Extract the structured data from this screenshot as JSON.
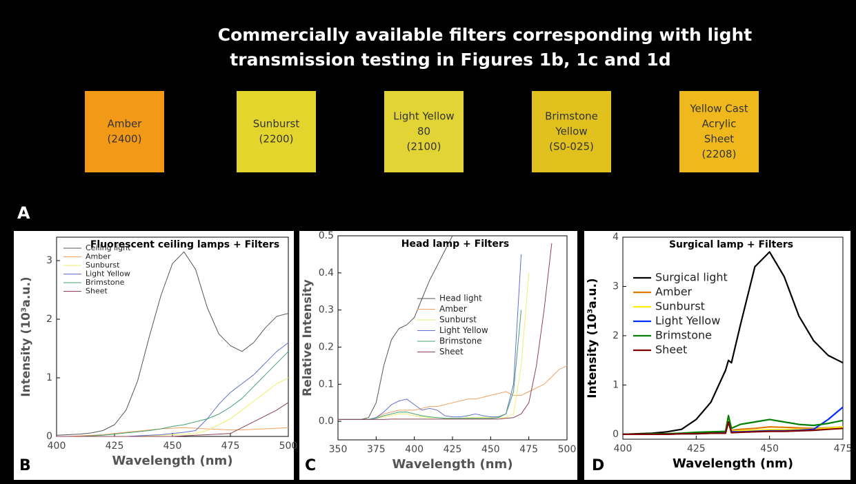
{
  "photo": {
    "title_lines": [
      "Commercially available filters corresponding with light",
      "transmission testing in Figures 1b, 1c and 1d"
    ],
    "panel": "A",
    "filters": [
      {
        "lines": [
          "Amber",
          "(2400)"
        ],
        "color": "#f29a18"
      },
      {
        "lines": [
          "Sunburst",
          "(2200)"
        ],
        "color": "#e4d52c"
      },
      {
        "lines": [
          "Light Yellow",
          "80",
          "(2100)"
        ],
        "color": "#e2d435"
      },
      {
        "lines": [
          "Brimstone",
          "Yellow",
          "(S0-025)"
        ],
        "color": "#e1c11e"
      },
      {
        "lines": [
          "Yellow Cast",
          "Acrylic",
          "Sheet",
          "(2208)"
        ],
        "color": "#efb81c"
      }
    ]
  },
  "chart_data": [
    {
      "type": "line",
      "panel": "B",
      "title": "Fluorescent ceiling  lamps + Filters",
      "x_label": "Wavelength (nm)",
      "y_label": "Intensity (10³a.u.)",
      "xlim": [
        400,
        500
      ],
      "ylim": [
        0,
        3.4
      ],
      "xticks": [
        400,
        425,
        450,
        475,
        500
      ],
      "yticks": [
        0,
        1,
        2,
        3
      ],
      "x": [
        400,
        405,
        410,
        415,
        420,
        425,
        430,
        435,
        440,
        445,
        450,
        455,
        460,
        465,
        470,
        475,
        480,
        485,
        490,
        495,
        500
      ],
      "series": [
        {
          "name": "Ceiling light",
          "color": "#555555",
          "values": [
            0.02,
            0.03,
            0.04,
            0.06,
            0.1,
            0.2,
            0.45,
            0.95,
            1.7,
            2.4,
            2.95,
            3.15,
            2.85,
            2.2,
            1.75,
            1.55,
            1.45,
            1.6,
            1.85,
            2.05,
            2.1
          ]
        },
        {
          "name": "Amber",
          "color": "#f0a060",
          "values": [
            0,
            0,
            0.01,
            0.02,
            0.03,
            0.05,
            0.07,
            0.09,
            0.11,
            0.13,
            0.14,
            0.15,
            0.14,
            0.13,
            0.12,
            0.11,
            0.11,
            0.12,
            0.13,
            0.14,
            0.15
          ]
        },
        {
          "name": "Sunburst",
          "color": "#eeee70",
          "values": [
            0,
            0,
            0,
            0,
            0,
            0,
            0,
            0,
            0.01,
            0.02,
            0.03,
            0.04,
            0.05,
            0.1,
            0.2,
            0.3,
            0.45,
            0.6,
            0.75,
            0.9,
            1.0
          ]
        },
        {
          "name": "Light Yellow",
          "color": "#6070d0",
          "values": [
            0,
            0,
            0,
            0,
            0,
            0,
            0,
            0.01,
            0.02,
            0.03,
            0.05,
            0.07,
            0.1,
            0.3,
            0.55,
            0.75,
            0.9,
            1.05,
            1.25,
            1.45,
            1.6
          ]
        },
        {
          "name": "Brimstone",
          "color": "#40a070",
          "values": [
            0,
            0,
            0,
            0.01,
            0.02,
            0.04,
            0.06,
            0.08,
            0.1,
            0.13,
            0.17,
            0.2,
            0.25,
            0.3,
            0.38,
            0.5,
            0.65,
            0.85,
            1.05,
            1.25,
            1.45
          ]
        },
        {
          "name": "Sheet",
          "color": "#904050",
          "values": [
            0,
            0,
            0,
            0,
            0,
            0,
            0,
            0,
            0,
            0,
            0,
            0.01,
            0.02,
            0.03,
            0.04,
            0.05,
            0.15,
            0.25,
            0.35,
            0.45,
            0.58
          ]
        }
      ]
    },
    {
      "type": "line",
      "panel": "C",
      "title": "Head lamp + Filters",
      "x_label": "Wavelength (nm)",
      "y_label": "Relative Intensity",
      "xlim": [
        350,
        500
      ],
      "ylim": [
        -0.05,
        0.5
      ],
      "xticks": [
        350,
        375,
        400,
        425,
        450,
        475,
        500
      ],
      "yticks": [
        {
          "value": 0,
          "label": "0.0"
        },
        0.1,
        0.2,
        0.3,
        0.4,
        0.5
      ],
      "x": [
        350,
        355,
        360,
        365,
        370,
        375,
        380,
        385,
        390,
        395,
        400,
        405,
        410,
        415,
        420,
        425,
        430,
        435,
        440,
        445,
        450,
        455,
        460,
        465,
        470,
        475,
        480,
        485,
        490,
        495,
        500
      ],
      "series": [
        {
          "name": "Head light",
          "color": "#555555",
          "values": [
            0.005,
            0.005,
            0.005,
            0.005,
            0.01,
            0.05,
            0.15,
            0.22,
            0.25,
            0.26,
            0.28,
            0.33,
            0.38,
            0.42,
            0.46,
            0.5,
            null,
            null,
            null,
            null,
            null,
            null,
            null,
            null,
            null,
            null,
            null,
            null,
            null,
            null,
            null
          ]
        },
        {
          "name": "Amber",
          "color": "#f0a060",
          "values": [
            0.005,
            0.005,
            0.005,
            0.005,
            0.005,
            0.01,
            0.02,
            0.025,
            0.03,
            0.03,
            0.03,
            0.035,
            0.04,
            0.04,
            0.045,
            0.05,
            0.055,
            0.06,
            0.06,
            0.065,
            0.07,
            0.075,
            0.08,
            0.07,
            0.07,
            0.08,
            0.09,
            0.1,
            0.12,
            0.14,
            0.15
          ]
        },
        {
          "name": "Sunburst",
          "color": "#eeee70",
          "values": [
            0.005,
            0.005,
            0.005,
            0.005,
            0.005,
            0.008,
            0.012,
            0.016,
            0.02,
            0.02,
            0.015,
            0.012,
            0.01,
            0.01,
            0.008,
            0.008,
            0.008,
            0.01,
            0.01,
            0.01,
            0.01,
            0.01,
            0.01,
            0.02,
            0.15,
            0.4,
            null,
            null,
            null,
            null,
            null
          ]
        },
        {
          "name": "Light Yellow",
          "color": "#6070d0",
          "values": [
            0.005,
            0.005,
            0.005,
            0.005,
            0.005,
            0.01,
            0.025,
            0.045,
            0.055,
            0.06,
            0.045,
            0.03,
            0.035,
            0.03,
            0.015,
            0.012,
            0.012,
            0.015,
            0.02,
            0.015,
            0.012,
            0.012,
            0.02,
            0.1,
            0.45,
            null,
            null,
            null,
            null,
            null,
            null
          ]
        },
        {
          "name": "Brimstone",
          "color": "#40a070",
          "values": [
            0.005,
            0.005,
            0.005,
            0.005,
            0.005,
            0.008,
            0.015,
            0.02,
            0.025,
            0.025,
            0.02,
            0.015,
            0.012,
            0.01,
            0.008,
            0.008,
            0.008,
            0.008,
            0.008,
            0.008,
            0.008,
            0.01,
            0.02,
            0.08,
            0.3,
            null,
            null,
            null,
            null,
            null,
            null
          ]
        },
        {
          "name": "Sheet",
          "color": "#904050",
          "values": [
            0.005,
            0.005,
            0.005,
            0.005,
            0.005,
            0.005,
            0.005,
            0.006,
            0.006,
            0.006,
            0.006,
            0.006,
            0.006,
            0.006,
            0.006,
            0.006,
            0.006,
            0.006,
            0.006,
            0.006,
            0.006,
            0.006,
            0.008,
            0.01,
            0.02,
            0.05,
            0.15,
            0.3,
            0.48,
            null,
            null
          ]
        }
      ]
    },
    {
      "type": "line",
      "panel": "D",
      "title": "Surgical lamp + Filters",
      "x_label": "Wavelength (nm)",
      "y_label": "Intensity (10³a.u.)",
      "xlim": [
        400,
        475
      ],
      "ylim": [
        -0.1,
        4
      ],
      "xticks": [
        400,
        425,
        450,
        475
      ],
      "yticks": [
        0,
        1,
        2,
        3,
        4
      ],
      "x": [
        400,
        405,
        410,
        415,
        420,
        425,
        430,
        435,
        436,
        437,
        440,
        445,
        450,
        455,
        460,
        465,
        470,
        475
      ],
      "series": [
        {
          "name": "Surgical light",
          "color": "#000000",
          "values": [
            0,
            0.01,
            0.02,
            0.05,
            0.1,
            0.3,
            0.65,
            1.3,
            1.5,
            1.45,
            2.2,
            3.4,
            3.7,
            3.2,
            2.4,
            1.9,
            1.6,
            1.45
          ]
        },
        {
          "name": "Amber",
          "color": "#e07800",
          "values": [
            0,
            0,
            0,
            0.01,
            0.02,
            0.03,
            0.04,
            0.05,
            0.3,
            0.08,
            0.1,
            0.12,
            0.15,
            0.14,
            0.13,
            0.12,
            0.13,
            0.15
          ]
        },
        {
          "name": "Sunburst",
          "color": "#ffee00",
          "values": [
            0,
            0,
            0,
            0.01,
            0.01,
            0.02,
            0.03,
            0.04,
            0.3,
            0.06,
            0.07,
            0.08,
            0.09,
            0.09,
            0.1,
            0.1,
            0.12,
            0.15
          ]
        },
        {
          "name": "Light Yellow",
          "color": "#0030ff",
          "values": [
            0,
            0,
            0,
            0,
            0.01,
            0.01,
            0.02,
            0.03,
            0.25,
            0.05,
            0.05,
            0.06,
            0.07,
            0.07,
            0.08,
            0.1,
            0.3,
            0.55
          ]
        },
        {
          "name": "Brimstone",
          "color": "#008000",
          "values": [
            0,
            0,
            0.01,
            0.01,
            0.02,
            0.04,
            0.05,
            0.06,
            0.38,
            0.12,
            0.2,
            0.25,
            0.3,
            0.25,
            0.2,
            0.18,
            0.22,
            0.28
          ]
        },
        {
          "name": "Sheet",
          "color": "#800000",
          "values": [
            0,
            0,
            0,
            0,
            0.01,
            0.01,
            0.02,
            0.02,
            0.25,
            0.03,
            0.04,
            0.05,
            0.06,
            0.06,
            0.07,
            0.08,
            0.1,
            0.12
          ]
        }
      ]
    }
  ]
}
